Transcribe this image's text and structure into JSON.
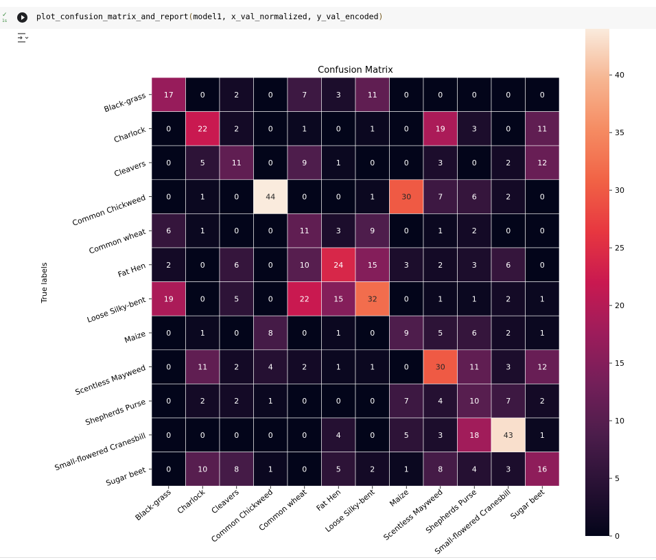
{
  "cell": {
    "status_check": "✓",
    "status_time": "1s",
    "code_fn": "plot_confusion_matrix_and_report",
    "code_open": "(",
    "code_args": "model1, x_val_normalized, y_val_encoded",
    "code_close": ")"
  },
  "chart_data": {
    "type": "heatmap",
    "title": "Confusion Matrix",
    "ylabel": "True labels",
    "xlabel": "",
    "row_labels": [
      "Black-grass",
      "Charlock",
      "Cleavers",
      "Common Chickweed",
      "Common wheat",
      "Fat Hen",
      "Loose Silky-bent",
      "Maize",
      "Scentless Mayweed",
      "Shepherds Purse",
      "Small-flowered Cranesbill",
      "Sugar beet"
    ],
    "col_labels": [
      "Black-grass",
      "Charlock",
      "Cleavers",
      "Common Chickweed",
      "Common wheat",
      "Fat Hen",
      "Loose Silky-bent",
      "Maize",
      "Scentless Mayweed",
      "Shepherds Purse",
      "Small-flowered Cranesbill",
      "Sugar beet"
    ],
    "values": [
      [
        17,
        0,
        2,
        0,
        7,
        3,
        11,
        0,
        0,
        0,
        0,
        0
      ],
      [
        0,
        22,
        2,
        0,
        1,
        0,
        1,
        0,
        19,
        3,
        0,
        11
      ],
      [
        0,
        5,
        11,
        0,
        9,
        1,
        0,
        0,
        3,
        0,
        2,
        12
      ],
      [
        0,
        1,
        0,
        44,
        0,
        0,
        1,
        30,
        7,
        6,
        2,
        0
      ],
      [
        6,
        1,
        0,
        0,
        11,
        3,
        9,
        0,
        1,
        2,
        0,
        0
      ],
      [
        2,
        0,
        6,
        0,
        10,
        24,
        15,
        3,
        2,
        3,
        6,
        0
      ],
      [
        19,
        0,
        5,
        0,
        22,
        15,
        32,
        0,
        1,
        1,
        2,
        1
      ],
      [
        0,
        1,
        0,
        8,
        0,
        1,
        0,
        9,
        5,
        6,
        2,
        1
      ],
      [
        0,
        11,
        2,
        4,
        2,
        1,
        1,
        0,
        30,
        11,
        3,
        12
      ],
      [
        0,
        2,
        2,
        1,
        0,
        0,
        0,
        7,
        4,
        10,
        7,
        2
      ],
      [
        0,
        0,
        0,
        0,
        0,
        4,
        0,
        5,
        3,
        18,
        43,
        1
      ],
      [
        0,
        10,
        8,
        1,
        0,
        5,
        2,
        1,
        8,
        4,
        3,
        16
      ]
    ],
    "colorbar": {
      "min": 0,
      "max": 44,
      "ticks": [
        0,
        5,
        10,
        15,
        20,
        25,
        30,
        35,
        40
      ]
    },
    "colormap": "rocket",
    "grid": true,
    "cell_border_color": "#ffffff"
  }
}
